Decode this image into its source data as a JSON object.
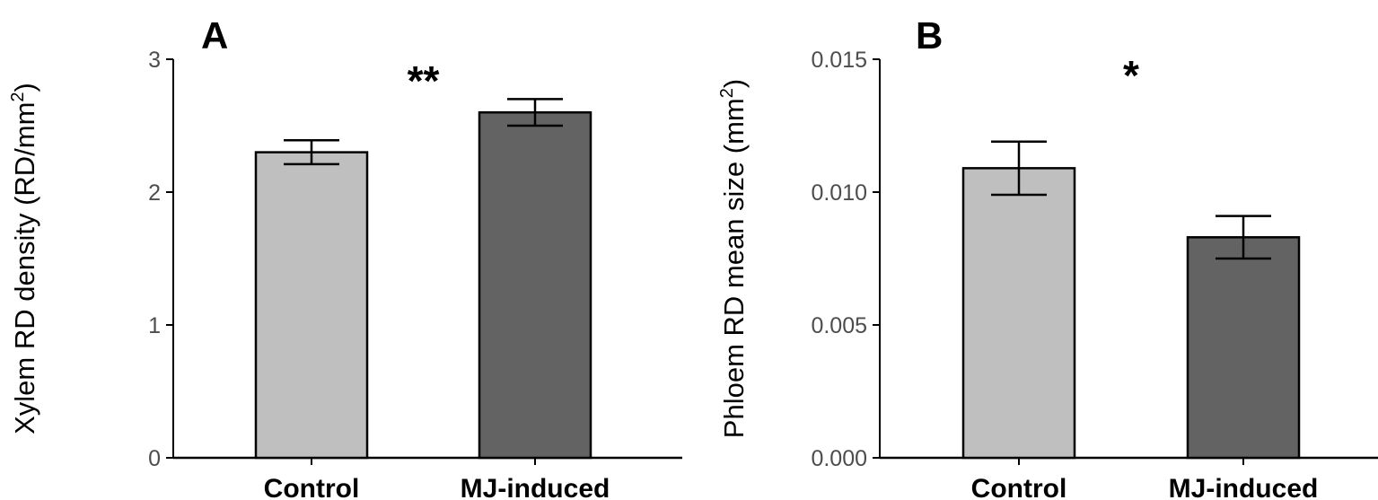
{
  "colors": {
    "control": "#bfbfbf",
    "mj_induced": "#636363",
    "outline": "#000000"
  },
  "chart_data": [
    {
      "type": "bar",
      "panel_label": "A",
      "categories": [
        "Control",
        "MJ-induced"
      ],
      "values": [
        2.3,
        2.6
      ],
      "errors": [
        0.09,
        0.1
      ],
      "ylabel": {
        "main": "Xylem RD density (RD/mm",
        "sup": "2",
        "close": ")"
      },
      "ylim": [
        0,
        3
      ],
      "yticks": [
        0,
        1,
        2,
        3
      ],
      "ytick_labels": [
        "0",
        "1",
        "2",
        "3"
      ],
      "significance": "**",
      "grid": false
    },
    {
      "type": "bar",
      "panel_label": "B",
      "categories": [
        "Control",
        "MJ-induced"
      ],
      "values": [
        0.0109,
        0.0083
      ],
      "errors": [
        0.001,
        0.0008
      ],
      "ylabel": {
        "main": "Phloem RD mean size (mm",
        "sup": "2",
        "close": ")"
      },
      "ylim": [
        0,
        0.015
      ],
      "yticks": [
        0,
        0.005,
        0.01,
        0.015
      ],
      "ytick_labels": [
        "0.000",
        "0.005",
        "0.010",
        "0.015"
      ],
      "significance": "*",
      "grid": false
    }
  ]
}
